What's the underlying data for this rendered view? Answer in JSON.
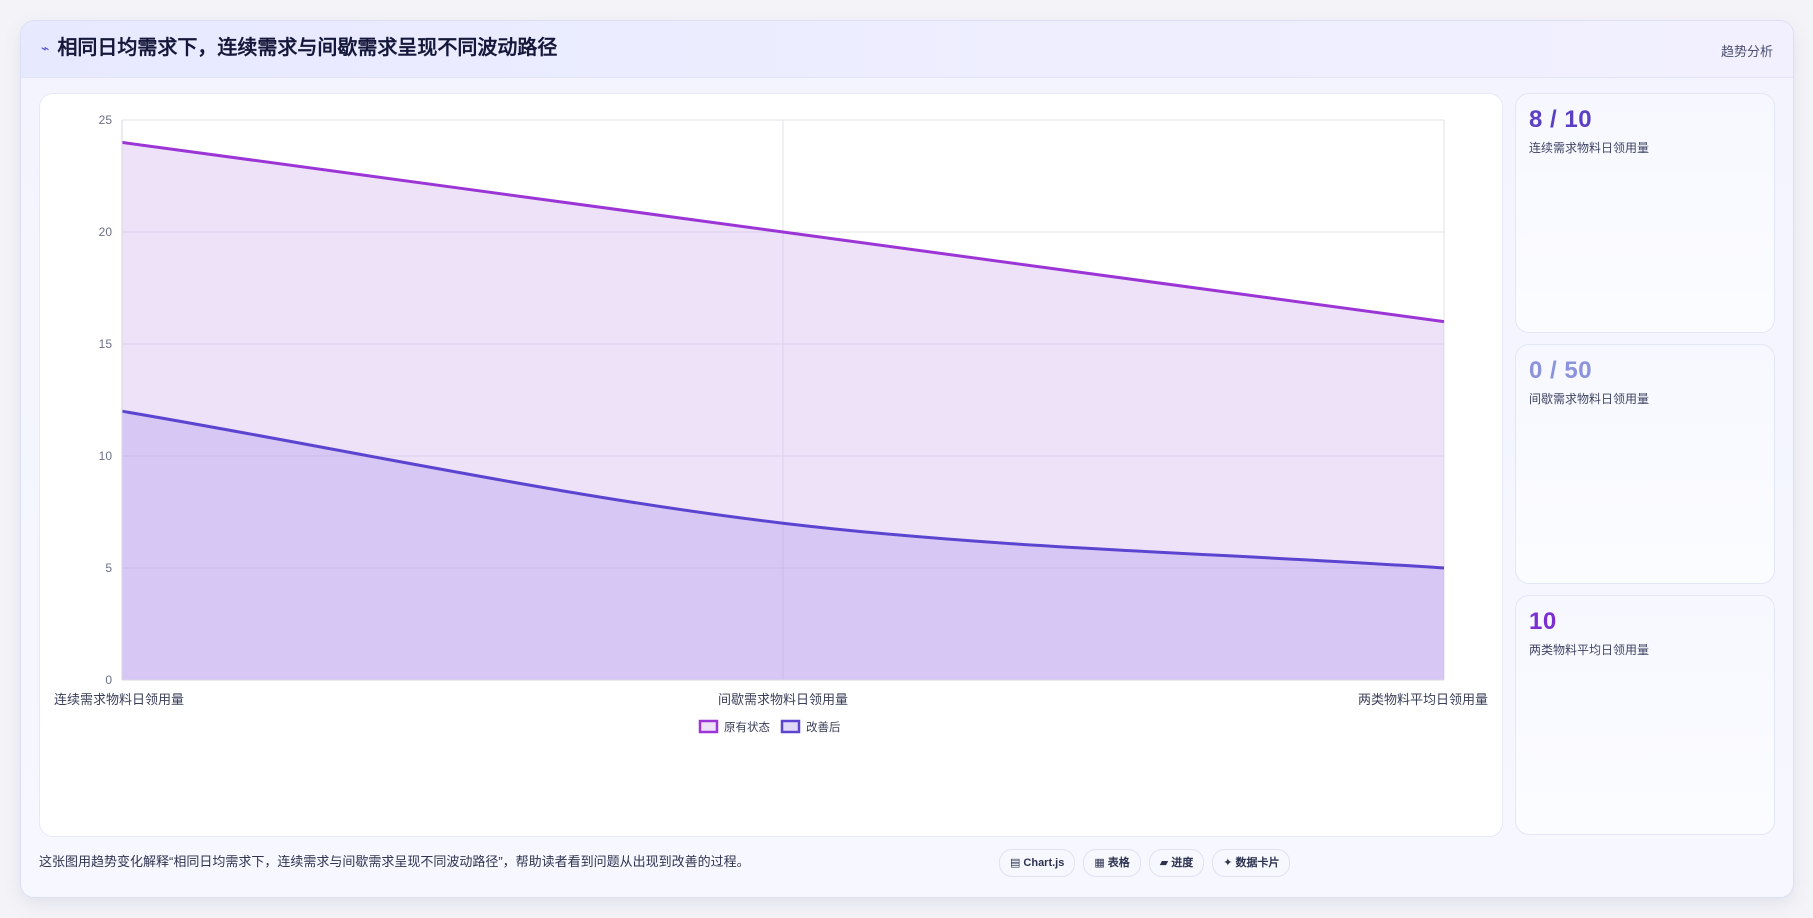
{
  "header": {
    "title_icon": "trend-icon",
    "title": "相同日均需求下，连续需求与间歇需求呈现不同波动路径",
    "tag": "趋势分析"
  },
  "kpis": [
    {
      "value": "8 / 10",
      "label": "连续需求物料日领用量",
      "color": "#5b3fc4"
    },
    {
      "value": "0 / 50",
      "label": "间歇需求物料日领用量",
      "color": "#8b93dc"
    },
    {
      "value": "10",
      "label": "两类物料平均日领用量",
      "color": "#7b2fd0"
    }
  ],
  "footer": {
    "description": "这张图用趋势变化解释“相同日均需求下，连续需求与间歇需求呈现不同波动路径”，帮助读者看到问题从出现到改善的过程。",
    "chips": [
      {
        "icon": "chart-icon",
        "glyph": "▤",
        "label": "Chart.js"
      },
      {
        "icon": "table-icon",
        "glyph": "▦",
        "label": "表格"
      },
      {
        "icon": "progress-icon",
        "glyph": "▰",
        "label": "进度"
      },
      {
        "icon": "card-icon",
        "glyph": "✦",
        "label": "数据卡片"
      }
    ]
  },
  "chart_data": {
    "type": "area",
    "categories": [
      "连续需求物料日领用量",
      "间歇需求物料日领用量",
      "两类物料平均日领用量"
    ],
    "series": [
      {
        "name": "原有状态",
        "values": [
          24,
          20,
          16
        ],
        "color": "#9b35d6",
        "fill": "rgba(200,160,235,0.30)"
      },
      {
        "name": "改善后",
        "values": [
          12,
          7,
          5
        ],
        "color": "#5b45d0",
        "fill": "rgba(180,160,240,0.40)"
      }
    ],
    "ylim": [
      0,
      25
    ],
    "yticks": [
      0,
      5,
      10,
      15,
      20,
      25
    ],
    "grid": true,
    "legend": "bottom",
    "title": "",
    "xlabel": "",
    "ylabel": ""
  }
}
